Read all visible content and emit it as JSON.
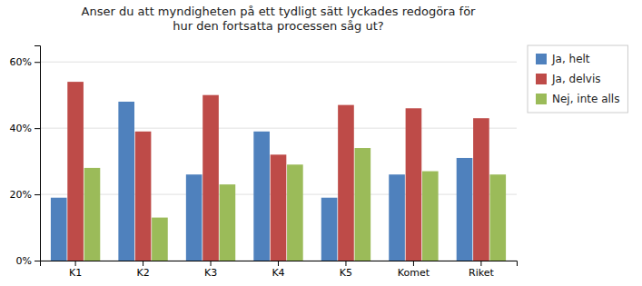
{
  "chart_data": {
    "type": "bar",
    "title": "Anser du att myndigheten på ett tydligt sätt lyckades redogöra för\nhur den fortsatta processen såg ut?",
    "categories": [
      "K1",
      "K2",
      "K3",
      "K4",
      "K5",
      "Komet",
      "Riket"
    ],
    "series": [
      {
        "name": "Ja, helt",
        "color": "#4F81BD",
        "values": [
          19,
          48,
          26,
          39,
          19,
          26,
          31
        ]
      },
      {
        "name": "Ja, delvis",
        "color": "#BE4B48",
        "values": [
          54,
          39,
          50,
          32,
          47,
          46,
          43
        ]
      },
      {
        "name": "Nej, inte alls",
        "color": "#9BBB59",
        "values": [
          28,
          13,
          23,
          29,
          34,
          27,
          26
        ]
      }
    ],
    "ylim": [
      0,
      65
    ],
    "yticks": [
      {
        "value": 0,
        "label": "0%"
      },
      {
        "value": 20,
        "label": "20%"
      },
      {
        "value": 40,
        "label": "40%"
      },
      {
        "value": 60,
        "label": "60%"
      }
    ],
    "grid": true,
    "legend": "right"
  }
}
